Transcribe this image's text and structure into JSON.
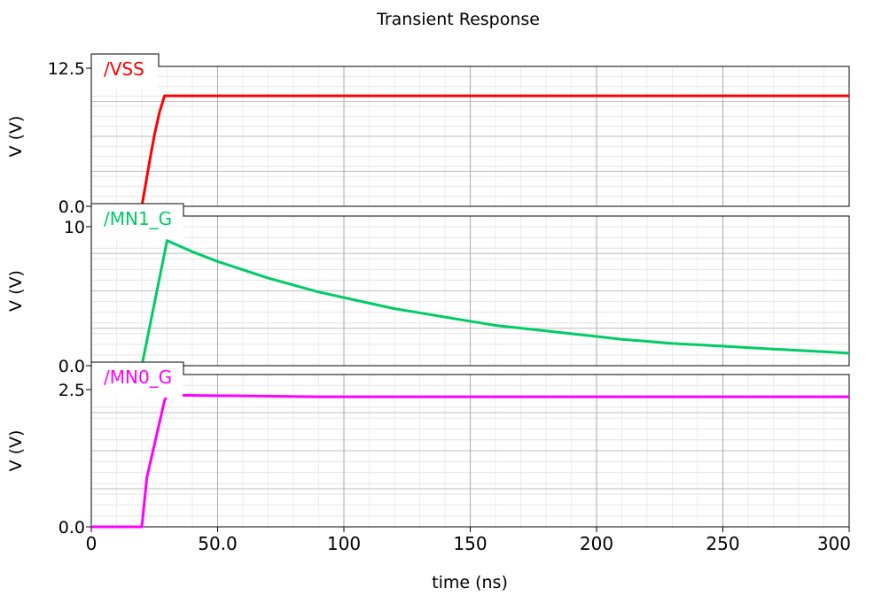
{
  "chart_data": {
    "type": "line",
    "title": "Transient Response",
    "xlabel": "time (ns)",
    "xlim": [
      0,
      300
    ],
    "x_ticks": [
      0,
      50,
      100,
      150,
      200,
      250,
      300
    ],
    "x_tick_labels": [
      "0",
      "50.0",
      "100",
      "150",
      "200",
      "250",
      "300"
    ],
    "grid": true,
    "panels": [
      {
        "name": "/VSS",
        "color": "#ff0000",
        "ylabel": "V (V)",
        "ylim": [
          0,
          12.5
        ],
        "y_tick_labels": [
          "12.5",
          "0.0"
        ],
        "x": [
          0,
          20,
          23,
          25,
          27,
          29,
          30,
          300
        ],
        "values": [
          0,
          0,
          4,
          6.5,
          8.5,
          10,
          10,
          10
        ]
      },
      {
        "name": "/MN1_G",
        "color": "#00cc66",
        "ylabel": "V (V)",
        "ylim": [
          0,
          10
        ],
        "y_tick_labels": [
          "10",
          "0.0"
        ],
        "x": [
          0,
          20,
          30,
          40,
          50,
          60,
          70,
          80,
          90,
          100,
          110,
          120,
          130,
          140,
          150,
          160,
          170,
          180,
          190,
          200,
          210,
          220,
          230,
          240,
          250,
          260,
          270,
          280,
          290,
          300
        ],
        "values": [
          0,
          0,
          9.0,
          8.2,
          7.5,
          6.9,
          6.3,
          5.8,
          5.3,
          4.9,
          4.5,
          4.1,
          3.8,
          3.5,
          3.2,
          2.9,
          2.7,
          2.5,
          2.3,
          2.1,
          1.9,
          1.75,
          1.6,
          1.5,
          1.4,
          1.3,
          1.2,
          1.1,
          1.0,
          0.9
        ]
      },
      {
        "name": "/MN0_G",
        "color": "#ff00ff",
        "ylabel": "V (V)",
        "ylim": [
          0,
          2.5
        ],
        "y_tick_labels": [
          "2.5",
          "0.0"
        ],
        "x": [
          0,
          20,
          22,
          24,
          26,
          28,
          29,
          30,
          90,
          300
        ],
        "values": [
          0,
          0,
          0.9,
          1.3,
          1.7,
          2.1,
          2.3,
          2.4,
          2.37,
          2.37
        ]
      }
    ]
  }
}
